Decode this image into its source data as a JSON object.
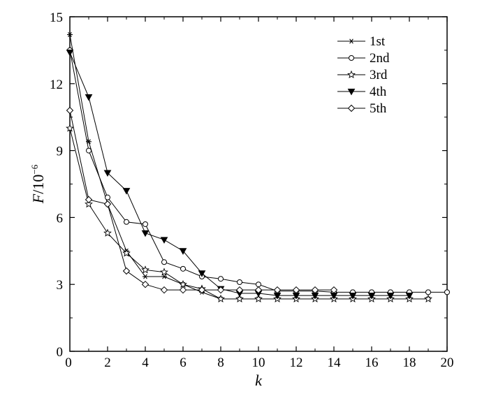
{
  "chart_data": {
    "type": "line",
    "title": "",
    "xlabel": "k",
    "ylabel_main": "F",
    "ylabel_unit": "/10",
    "ylabel_exp": "−6",
    "xlim": [
      0,
      20
    ],
    "ylim": [
      0,
      15
    ],
    "xticks": [
      2,
      4,
      6,
      8,
      10,
      12,
      14,
      16,
      18,
      20
    ],
    "yticks": [
      0,
      3,
      6,
      9,
      12,
      15
    ],
    "x_origin_label": "0",
    "grid": false,
    "legend_position": "top-right",
    "series": [
      {
        "name": "1st",
        "marker": "asterisk",
        "x": [
          0,
          1,
          2,
          3,
          4,
          5,
          6,
          7,
          8,
          9,
          10,
          11,
          12,
          13,
          14,
          15,
          16,
          17,
          18,
          19
        ],
        "y": [
          14.2,
          9.4,
          6.6,
          4.5,
          3.35,
          3.35,
          3.0,
          2.65,
          2.35,
          2.35,
          2.35,
          2.35,
          2.35,
          2.35,
          2.35,
          2.35,
          2.35,
          2.35,
          2.35,
          2.35
        ]
      },
      {
        "name": "2nd",
        "marker": "circle",
        "x": [
          0,
          1,
          2,
          3,
          4,
          5,
          6,
          7,
          8,
          9,
          10,
          11,
          12,
          13,
          14,
          15,
          16,
          17,
          18,
          19,
          20
        ],
        "y": [
          13.5,
          9.0,
          6.9,
          5.8,
          5.7,
          4.0,
          3.7,
          3.35,
          3.25,
          3.1,
          3.0,
          2.7,
          2.7,
          2.7,
          2.65,
          2.65,
          2.65,
          2.65,
          2.65,
          2.65,
          2.65
        ]
      },
      {
        "name": "3rd",
        "marker": "star",
        "x": [
          0,
          1,
          2,
          3,
          4,
          5,
          6,
          7,
          8,
          9,
          10,
          11,
          12,
          13,
          14,
          15,
          16,
          17,
          18,
          19
        ],
        "y": [
          10.0,
          6.6,
          5.3,
          4.4,
          3.65,
          3.55,
          3.0,
          2.8,
          2.35,
          2.35,
          2.35,
          2.35,
          2.35,
          2.35,
          2.35,
          2.35,
          2.35,
          2.35,
          2.35,
          2.35
        ]
      },
      {
        "name": "4th",
        "marker": "triangle-down",
        "x": [
          0,
          1,
          2,
          3,
          4,
          5,
          6,
          7,
          8,
          9,
          10,
          11,
          12,
          13,
          14,
          15,
          16,
          17,
          18
        ],
        "y": [
          13.4,
          11.4,
          8.0,
          7.2,
          5.3,
          5.0,
          4.5,
          3.5,
          2.8,
          2.6,
          2.6,
          2.5,
          2.5,
          2.5,
          2.5,
          2.5,
          2.5,
          2.5,
          2.5
        ]
      },
      {
        "name": "5th",
        "marker": "diamond",
        "x": [
          0,
          1,
          2,
          3,
          4,
          5,
          6,
          7,
          8,
          9,
          10,
          11,
          12,
          13,
          14
        ],
        "y": [
          10.8,
          6.8,
          6.6,
          3.6,
          3.0,
          2.75,
          2.75,
          2.75,
          2.75,
          2.75,
          2.75,
          2.75,
          2.75,
          2.75,
          2.75
        ]
      }
    ]
  }
}
